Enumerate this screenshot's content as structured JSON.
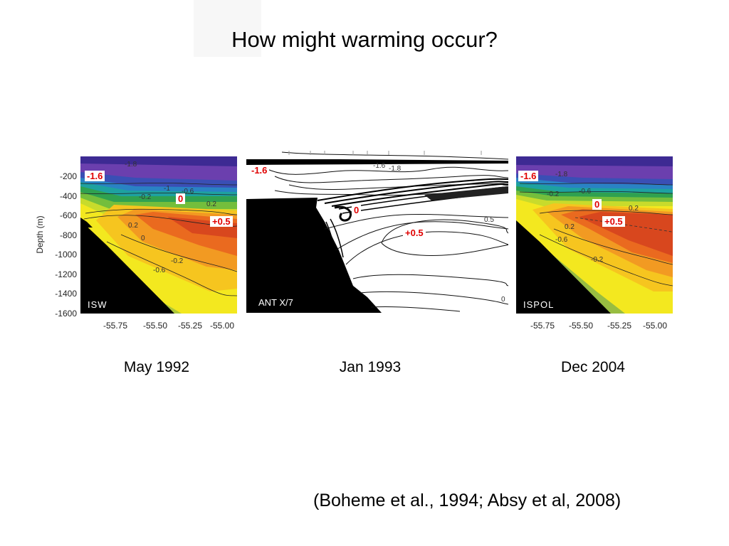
{
  "slide": {
    "title": "How might warming occur?",
    "citation": "(Boheme et al., 1994; Absy et al, 2008)"
  },
  "panels": [
    {
      "tag": "ISW",
      "date": "May 1992",
      "labels": {
        "cold": "-1.6",
        "zero": "0",
        "warm": "+0.5"
      },
      "contour_labels": [
        "-1.8",
        "-1",
        "-0.6",
        "-0.2",
        "0.2",
        "0.2",
        "0",
        "-0.2",
        "-0.6"
      ]
    },
    {
      "tag": "ANT X/7",
      "date": "Jan 1993",
      "labels": {
        "cold": "-1.6",
        "zero": "0",
        "warm": "+0.5"
      },
      "contour_labels": [
        "-1.6",
        "-1.8",
        "0.5",
        "0"
      ]
    },
    {
      "tag": "ISPOL",
      "date": "Dec 2004",
      "labels": {
        "cold": "-1.6",
        "zero": "0",
        "warm": "+0.5"
      },
      "contour_labels": [
        "-1.8",
        "-0.6",
        "-0.2",
        "0.2",
        "0.2",
        "-0.6",
        "-0.2"
      ]
    }
  ],
  "axes": {
    "ylabel": "Depth (m)",
    "yticks": [
      "-200",
      "-400",
      "-600",
      "-800",
      "-1000",
      "-1200",
      "-1400",
      "-1600"
    ],
    "xticks": [
      "-55.75",
      "-55.50",
      "-55.25",
      "-55.00"
    ]
  }
}
